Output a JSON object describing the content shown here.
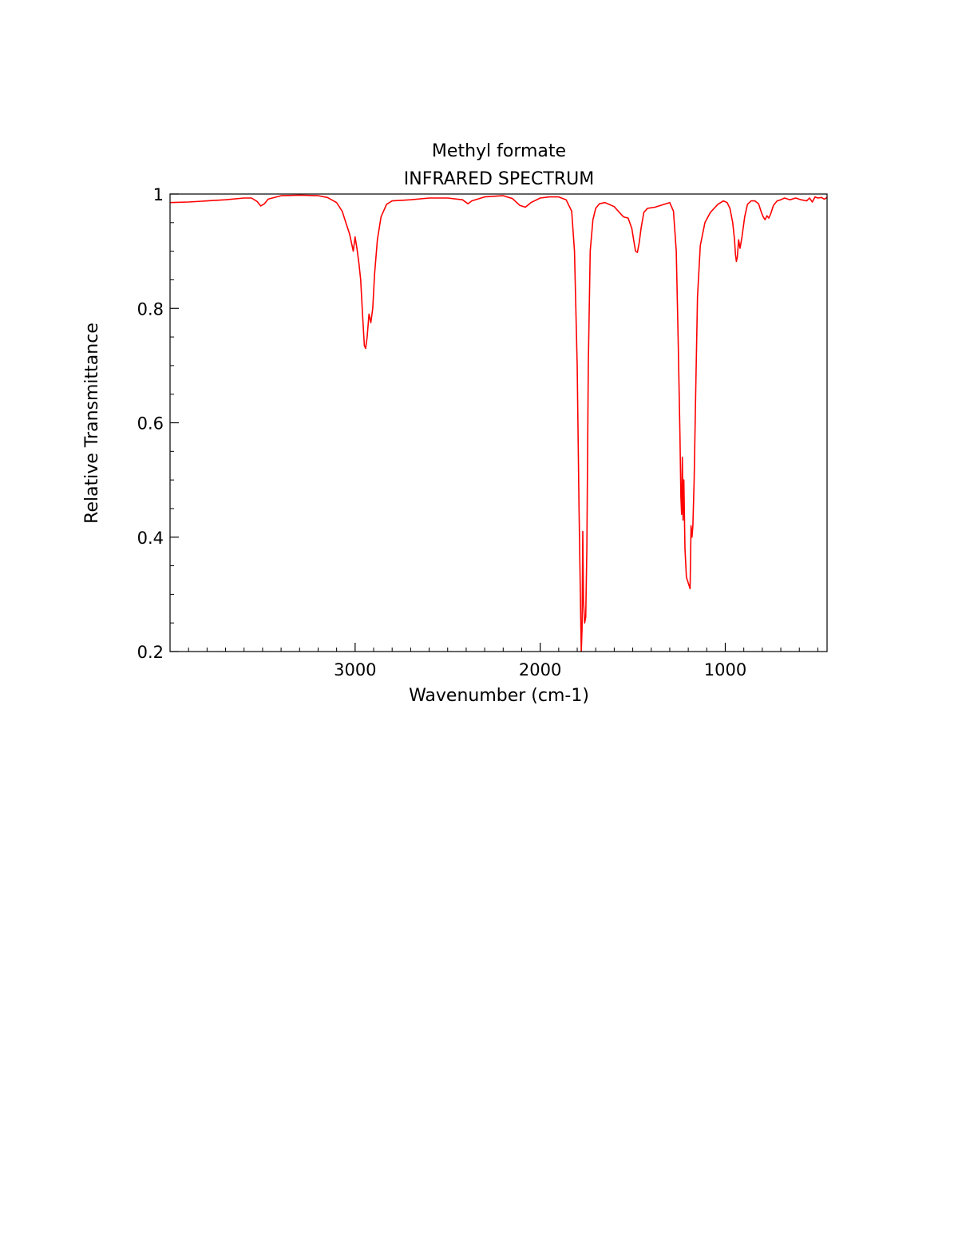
{
  "chart_data": {
    "type": "line",
    "title": "Methyl formate",
    "subtitle": "INFRARED SPECTRUM",
    "xlabel": "Wavenumber (cm-1)",
    "ylabel": "Relative Transmittance",
    "xlim": [
      4000,
      450
    ],
    "ylim": [
      0.2,
      1.0
    ],
    "x_reversed": true,
    "grid": false,
    "x_ticks": [
      3000,
      2000,
      1000
    ],
    "x_tick_labels": [
      "3000",
      "2000",
      "1000"
    ],
    "x_minor_tick_step": 100,
    "y_ticks": [
      0.2,
      0.4,
      0.6,
      0.8,
      1.0
    ],
    "y_tick_labels": [
      "0.2",
      "0.4",
      "0.6",
      "0.8",
      "1"
    ],
    "y_minor_tick_step": 0.05,
    "series": [
      {
        "color": "#ff0000",
        "points": [
          [
            4000,
            0.985
          ],
          [
            3900,
            0.986
          ],
          [
            3800,
            0.988
          ],
          [
            3700,
            0.99
          ],
          [
            3600,
            0.993
          ],
          [
            3560,
            0.993
          ],
          [
            3530,
            0.987
          ],
          [
            3510,
            0.979
          ],
          [
            3490,
            0.983
          ],
          [
            3470,
            0.991
          ],
          [
            3400,
            0.997
          ],
          [
            3300,
            0.998
          ],
          [
            3200,
            0.997
          ],
          [
            3150,
            0.994
          ],
          [
            3100,
            0.985
          ],
          [
            3070,
            0.97
          ],
          [
            3050,
            0.95
          ],
          [
            3030,
            0.93
          ],
          [
            3010,
            0.9
          ],
          [
            3000,
            0.925
          ],
          [
            2990,
            0.905
          ],
          [
            2980,
            0.88
          ],
          [
            2970,
            0.85
          ],
          [
            2960,
            0.79
          ],
          [
            2950,
            0.735
          ],
          [
            2943,
            0.73
          ],
          [
            2935,
            0.75
          ],
          [
            2925,
            0.79
          ],
          [
            2915,
            0.775
          ],
          [
            2905,
            0.8
          ],
          [
            2895,
            0.86
          ],
          [
            2880,
            0.92
          ],
          [
            2860,
            0.96
          ],
          [
            2830,
            0.982
          ],
          [
            2800,
            0.988
          ],
          [
            2700,
            0.99
          ],
          [
            2600,
            0.993
          ],
          [
            2500,
            0.993
          ],
          [
            2420,
            0.99
          ],
          [
            2390,
            0.983
          ],
          [
            2370,
            0.988
          ],
          [
            2300,
            0.995
          ],
          [
            2200,
            0.997
          ],
          [
            2150,
            0.992
          ],
          [
            2110,
            0.98
          ],
          [
            2080,
            0.977
          ],
          [
            2050,
            0.985
          ],
          [
            2000,
            0.993
          ],
          [
            1950,
            0.995
          ],
          [
            1900,
            0.995
          ],
          [
            1860,
            0.99
          ],
          [
            1830,
            0.97
          ],
          [
            1815,
            0.9
          ],
          [
            1800,
            0.7
          ],
          [
            1790,
            0.45
          ],
          [
            1782,
            0.28
          ],
          [
            1778,
            0.2
          ],
          [
            1774,
            0.24
          ],
          [
            1770,
            0.41
          ],
          [
            1766,
            0.29
          ],
          [
            1760,
            0.25
          ],
          [
            1754,
            0.26
          ],
          [
            1748,
            0.38
          ],
          [
            1740,
            0.7
          ],
          [
            1730,
            0.9
          ],
          [
            1715,
            0.955
          ],
          [
            1700,
            0.975
          ],
          [
            1680,
            0.983
          ],
          [
            1650,
            0.985
          ],
          [
            1600,
            0.978
          ],
          [
            1570,
            0.967
          ],
          [
            1550,
            0.96
          ],
          [
            1525,
            0.958
          ],
          [
            1505,
            0.94
          ],
          [
            1495,
            0.92
          ],
          [
            1485,
            0.9
          ],
          [
            1475,
            0.898
          ],
          [
            1465,
            0.915
          ],
          [
            1455,
            0.94
          ],
          [
            1440,
            0.968
          ],
          [
            1420,
            0.975
          ],
          [
            1380,
            0.977
          ],
          [
            1330,
            0.982
          ],
          [
            1300,
            0.985
          ],
          [
            1280,
            0.97
          ],
          [
            1265,
            0.9
          ],
          [
            1255,
            0.75
          ],
          [
            1245,
            0.58
          ],
          [
            1240,
            0.47
          ],
          [
            1236,
            0.44
          ],
          [
            1232,
            0.54
          ],
          [
            1228,
            0.43
          ],
          [
            1224,
            0.5
          ],
          [
            1218,
            0.38
          ],
          [
            1210,
            0.33
          ],
          [
            1200,
            0.32
          ],
          [
            1190,
            0.31
          ],
          [
            1185,
            0.42
          ],
          [
            1180,
            0.4
          ],
          [
            1175,
            0.42
          ],
          [
            1168,
            0.5
          ],
          [
            1160,
            0.65
          ],
          [
            1150,
            0.82
          ],
          [
            1135,
            0.91
          ],
          [
            1110,
            0.95
          ],
          [
            1080,
            0.968
          ],
          [
            1040,
            0.982
          ],
          [
            1010,
            0.988
          ],
          [
            990,
            0.985
          ],
          [
            975,
            0.975
          ],
          [
            960,
            0.95
          ],
          [
            950,
            0.92
          ],
          [
            945,
            0.895
          ],
          [
            940,
            0.882
          ],
          [
            935,
            0.89
          ],
          [
            928,
            0.92
          ],
          [
            920,
            0.905
          ],
          [
            910,
            0.925
          ],
          [
            895,
            0.96
          ],
          [
            880,
            0.982
          ],
          [
            860,
            0.988
          ],
          [
            840,
            0.988
          ],
          [
            820,
            0.983
          ],
          [
            805,
            0.968
          ],
          [
            795,
            0.96
          ],
          [
            785,
            0.955
          ],
          [
            775,
            0.962
          ],
          [
            765,
            0.958
          ],
          [
            755,
            0.965
          ],
          [
            740,
            0.98
          ],
          [
            720,
            0.988
          ],
          [
            700,
            0.99
          ],
          [
            680,
            0.993
          ],
          [
            650,
            0.99
          ],
          [
            620,
            0.993
          ],
          [
            590,
            0.99
          ],
          [
            560,
            0.988
          ],
          [
            545,
            0.993
          ],
          [
            530,
            0.986
          ],
          [
            515,
            0.995
          ],
          [
            500,
            0.993
          ],
          [
            480,
            0.994
          ],
          [
            465,
            0.991
          ],
          [
            450,
            0.994
          ]
        ]
      }
    ]
  }
}
